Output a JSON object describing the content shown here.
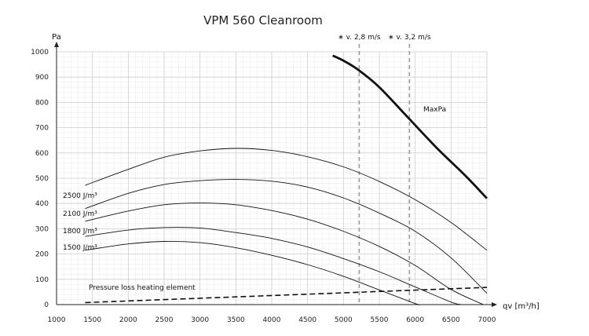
{
  "chart_data": {
    "type": "line",
    "title": "VPM 560 Cleanroom",
    "ylabel": "Pa",
    "xlabel": "qv [m³/h]",
    "xlim": [
      1000,
      7000
    ],
    "ylim": [
      0,
      1000
    ],
    "x_ticks": [
      1000,
      1500,
      2000,
      2500,
      3000,
      3500,
      4000,
      4500,
      5000,
      5500,
      6000,
      6500,
      7000
    ],
    "y_ticks": [
      0,
      100,
      200,
      300,
      400,
      500,
      600,
      700,
      800,
      900,
      1000
    ],
    "grid": true,
    "series": [
      {
        "name": "MaxPa",
        "style": "thick",
        "x": [
          4850,
          5000,
          5200,
          5500,
          5900,
          6300,
          6700,
          7000
        ],
        "y": [
          985,
          965,
          930,
          860,
          740,
          620,
          510,
          420
        ]
      },
      {
        "name": "",
        "style": "thin",
        "x": [
          1400,
          2000,
          2500,
          3000,
          3500,
          4000,
          4500,
          5000,
          5500,
          6000,
          6500,
          7000
        ],
        "y": [
          472,
          535,
          583,
          608,
          618,
          610,
          585,
          545,
          487,
          415,
          325,
          215
        ]
      },
      {
        "name": "2500 J/m³",
        "style": "thin",
        "x": [
          1400,
          2000,
          2500,
          3000,
          3500,
          4000,
          4500,
          5000,
          5500,
          6000,
          6500,
          7000
        ],
        "y": [
          380,
          440,
          475,
          490,
          495,
          488,
          465,
          422,
          362,
          290,
          185,
          45
        ]
      },
      {
        "name": "2100 J/m³",
        "style": "thin",
        "x": [
          1400,
          2000,
          2500,
          3000,
          3500,
          4000,
          4500,
          5000,
          5500,
          6000,
          6500,
          6950
        ],
        "y": [
          330,
          370,
          395,
          402,
          395,
          372,
          338,
          290,
          230,
          155,
          60,
          0
        ]
      },
      {
        "name": "1800 J/m³",
        "style": "thin",
        "x": [
          1400,
          2000,
          2500,
          3000,
          3500,
          4000,
          4500,
          5000,
          5500,
          6000,
          6500,
          6650
        ],
        "y": [
          270,
          295,
          305,
          303,
          285,
          262,
          228,
          182,
          130,
          70,
          10,
          0
        ]
      },
      {
        "name": "1500 J/m³",
        "style": "thin",
        "x": [
          1400,
          2000,
          2500,
          3000,
          3500,
          4000,
          4500,
          5000,
          5500,
          6000,
          6050
        ],
        "y": [
          215,
          240,
          250,
          245,
          225,
          195,
          158,
          112,
          58,
          4,
          0
        ]
      },
      {
        "name": "Pressure loss heating element",
        "style": "dashed",
        "x": [
          1400,
          7000
        ],
        "y": [
          8,
          68
        ]
      }
    ],
    "markers": [
      {
        "label": "∗ v. 2,8 m/s",
        "x": 5220
      },
      {
        "label": "∗ v. 3,2 m/s",
        "x": 5920
      }
    ]
  }
}
